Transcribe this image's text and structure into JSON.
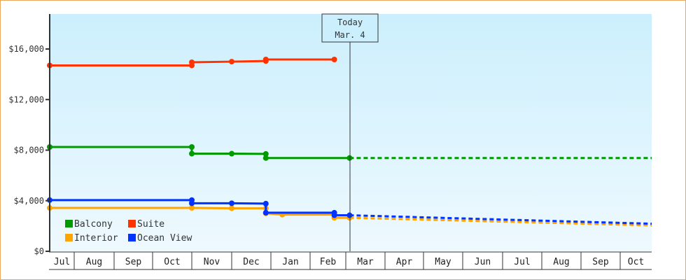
{
  "chart_data": {
    "type": "line",
    "title": "",
    "xlabel": "",
    "ylabel": "",
    "ylim": [
      0,
      18500
    ],
    "y_ticks": [
      {
        "value": 0,
        "label": "$0"
      },
      {
        "value": 4000,
        "label": "$4,000"
      },
      {
        "value": 8000,
        "label": "$8,000"
      },
      {
        "value": 12000,
        "label": "$12,000"
      },
      {
        "value": 16000,
        "label": "$16,000"
      }
    ],
    "x_months": [
      "Jul",
      "Aug",
      "Sep",
      "Oct",
      "Nov",
      "Dec",
      "Jan",
      "Feb",
      "Mar",
      "Apr",
      "May",
      "Jun",
      "Jul",
      "Aug",
      "Sep",
      "Oct"
    ],
    "today_marker": {
      "line1": "Today",
      "line2": "Mar. 4"
    },
    "legend": {
      "position": "bottom-left-inside",
      "entries": [
        {
          "name": "Balcony",
          "color": "#009900"
        },
        {
          "name": "Suite",
          "color": "#ff3300"
        },
        {
          "name": "Interior",
          "color": "#ffa500"
        },
        {
          "name": "Ocean View",
          "color": "#0033ff"
        }
      ]
    },
    "series": [
      {
        "name": "Suite",
        "color": "#ff3300",
        "points": [
          {
            "date": "Jul 1",
            "value": 14700
          },
          {
            "date": "Nov 1",
            "value": 14700
          },
          {
            "date": "Nov 1",
            "value": 14950
          },
          {
            "date": "Dec 1",
            "value": 15000
          },
          {
            "date": "Dec 28",
            "value": 15050
          },
          {
            "date": "Dec 28",
            "value": 15170
          },
          {
            "date": "Feb 20",
            "value": 15170
          }
        ],
        "projection": []
      },
      {
        "name": "Balcony",
        "color": "#009900",
        "points": [
          {
            "date": "Jul 1",
            "value": 8250
          },
          {
            "date": "Nov 1",
            "value": 8250
          },
          {
            "date": "Nov 1",
            "value": 7720
          },
          {
            "date": "Dec 1",
            "value": 7720
          },
          {
            "date": "Dec 28",
            "value": 7700
          },
          {
            "date": "Dec 28",
            "value": 7380
          },
          {
            "date": "Mar 4",
            "value": 7380
          }
        ],
        "projection": [
          {
            "date": "Mar 4",
            "value": 7380
          },
          {
            "date": "Oct 31",
            "value": 7380
          }
        ]
      },
      {
        "name": "Ocean View",
        "color": "#0033ff",
        "points": [
          {
            "date": "Jul 1",
            "value": 4050
          },
          {
            "date": "Nov 1",
            "value": 4050
          },
          {
            "date": "Nov 1",
            "value": 3800
          },
          {
            "date": "Dec 1",
            "value": 3800
          },
          {
            "date": "Dec 28",
            "value": 3770
          },
          {
            "date": "Dec 28",
            "value": 3050
          },
          {
            "date": "Feb 20",
            "value": 3050
          },
          {
            "date": "Feb 20",
            "value": 2850
          },
          {
            "date": "Mar 4",
            "value": 2850
          }
        ],
        "projection": [
          {
            "date": "Mar 4",
            "value": 2850
          },
          {
            "date": "Oct 31",
            "value": 2180
          }
        ]
      },
      {
        "name": "Interior",
        "color": "#ffa500",
        "points": [
          {
            "date": "Jul 1",
            "value": 3430
          },
          {
            "date": "Nov 1",
            "value": 3430
          },
          {
            "date": "Dec 1",
            "value": 3400
          },
          {
            "date": "Dec 28",
            "value": 3400
          },
          {
            "date": "Dec 28",
            "value": 3000
          },
          {
            "date": "Jan 10",
            "value": 2900
          },
          {
            "date": "Feb 20",
            "value": 2900
          },
          {
            "date": "Feb 20",
            "value": 2650
          },
          {
            "date": "Mar 4",
            "value": 2650
          }
        ],
        "projection": [
          {
            "date": "Mar 4",
            "value": 2650
          },
          {
            "date": "Oct 31",
            "value": 2050
          }
        ]
      }
    ]
  }
}
